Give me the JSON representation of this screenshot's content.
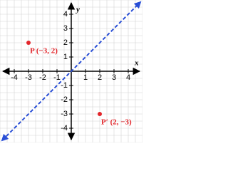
{
  "chart_data": {
    "type": "scatter",
    "xlabel": "x",
    "ylabel": "y",
    "xlim": [
      -5,
      5
    ],
    "ylim": [
      -5,
      5
    ],
    "xticks": [
      -4,
      -3,
      -2,
      -1,
      1,
      2,
      3,
      4
    ],
    "yticks": [
      4,
      3,
      2,
      1,
      -1,
      -2,
      -3,
      -4
    ],
    "grid": true,
    "grid_step": 0.5,
    "series": [
      {
        "type": "line",
        "color": "#2a4fd6",
        "dashed": true,
        "x": [
          -4.85,
          4.85
        ],
        "values": [
          -4.85,
          4.85
        ]
      },
      {
        "type": "scatter",
        "color": "#e3262b",
        "x": [
          -3,
          2
        ],
        "values": [
          2,
          -3
        ],
        "point_labels": [
          "P (−3, 2)",
          "P′ (2, −3)"
        ]
      }
    ]
  }
}
